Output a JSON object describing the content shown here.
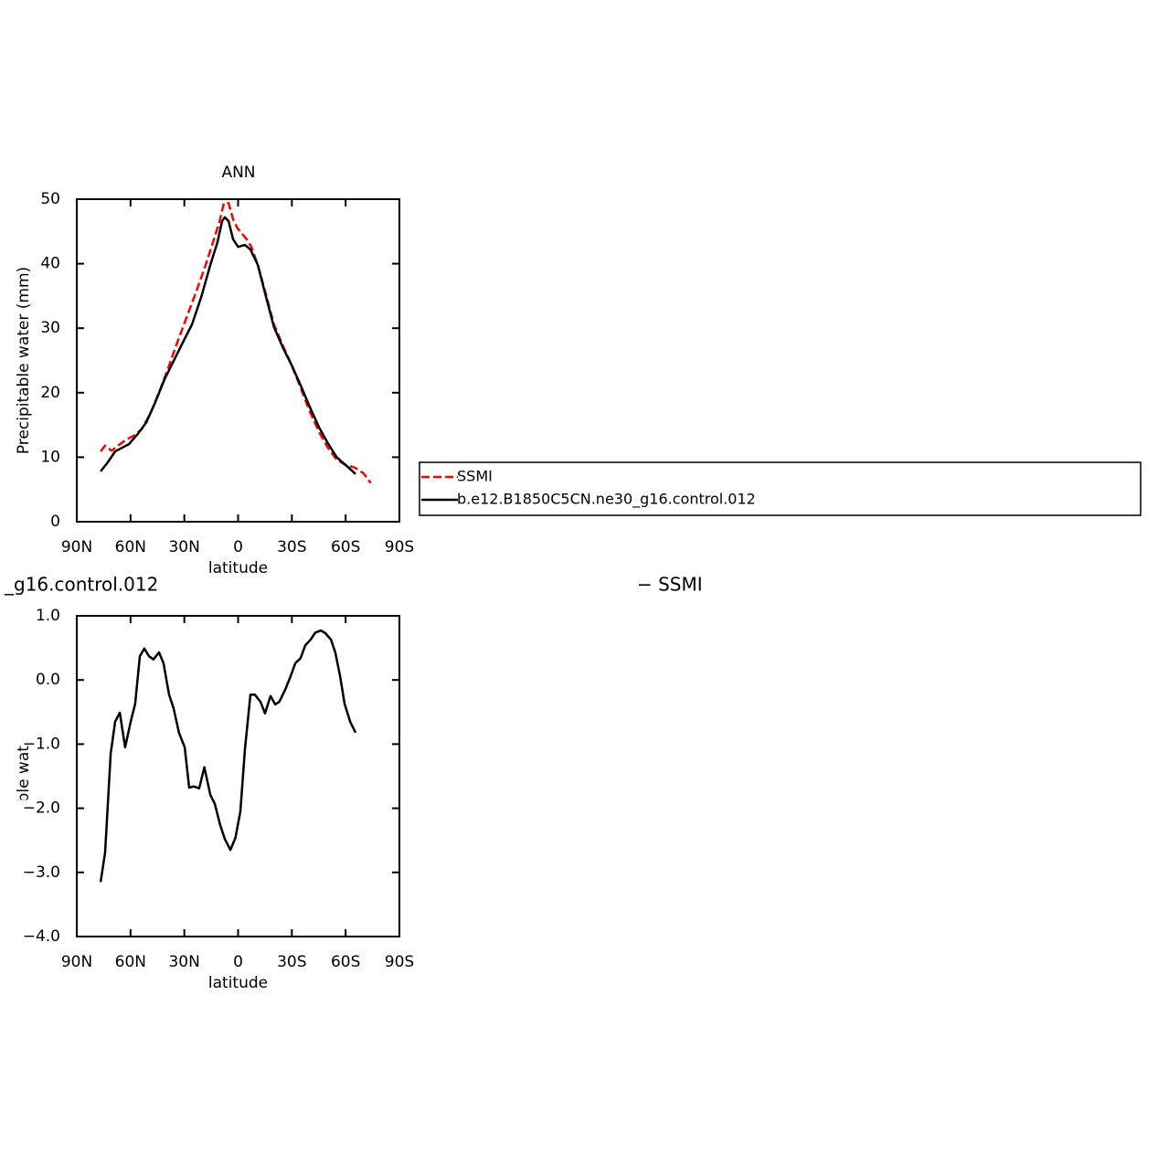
{
  "chart_data": [
    {
      "type": "line",
      "title": "ANN",
      "xlabel": "latitude",
      "ylabel": "Precipitable water (mm)",
      "xlim": [
        90,
        -90
      ],
      "xticks": [
        {
          "value": 90,
          "label": "90N"
        },
        {
          "value": 60,
          "label": "60N"
        },
        {
          "value": 30,
          "label": "30N"
        },
        0,
        {
          "value": -30,
          "label": "30S"
        },
        {
          "value": -60,
          "label": "60S"
        },
        {
          "value": -90,
          "label": "90S"
        }
      ],
      "ylim": [
        0,
        50
      ],
      "yticks": [
        0,
        10,
        20,
        30,
        40,
        50
      ],
      "legend": "right",
      "series": [
        {
          "name": "SSMI",
          "color": "#ff0000",
          "dash": "dashed",
          "x": [
            76.7,
            74.2,
            70.6,
            66.5,
            62.5,
            58.4,
            53.8,
            48.7,
            43.6,
            38.5,
            33.4,
            28.3,
            23.2,
            18.1,
            14,
            10.4,
            7.9,
            5.3,
            2.8,
            0.3,
            -2.3,
            -4.8,
            -7.4,
            -11,
            -15,
            -20,
            -25,
            -30,
            -35,
            -40,
            -45,
            -50,
            -55,
            -60,
            -65,
            -70,
            -74
          ],
          "values": [
            10.9,
            11.8,
            11.0,
            11.9,
            12.7,
            13.3,
            14.3,
            16.9,
            20.4,
            24.2,
            28.2,
            32.0,
            35.8,
            39.8,
            43.3,
            46.5,
            49.4,
            49.4,
            46.9,
            45.5,
            44.6,
            43.8,
            42.6,
            39.8,
            35.8,
            30.6,
            27.3,
            24.2,
            20.7,
            17.1,
            14.0,
            11.5,
            9.6,
            8.8,
            8.4,
            7.5,
            6.0
          ]
        },
        {
          "name": "b.e12.B1850C5CN.ne30_g16.control.012",
          "color": "#000000",
          "dash": "solid",
          "x": [
            76.7,
            72.7,
            68.6,
            64.5,
            61,
            56.3,
            51.2,
            46.1,
            41,
            36,
            30.8,
            25.7,
            20.6,
            15.5,
            11.5,
            8.9,
            7.4,
            5.3,
            2.8,
            0,
            -3.8,
            -6.9,
            -11,
            -15,
            -20,
            -25,
            -30,
            -35,
            -40,
            -45,
            -50,
            -55,
            -60,
            -65.5
          ],
          "values": [
            7.8,
            9.2,
            10.9,
            11.5,
            12.0,
            13.5,
            15.4,
            18.6,
            22.1,
            24.9,
            27.8,
            30.6,
            34.8,
            39.8,
            43.3,
            46.6,
            47.2,
            46.6,
            43.8,
            42.6,
            42.9,
            42.2,
            39.8,
            35.5,
            30.2,
            27.0,
            24.2,
            21.1,
            17.8,
            14.7,
            12.2,
            10.0,
            8.8,
            7.4
          ]
        }
      ]
    },
    {
      "type": "line",
      "title": "_g16.control.012",
      "subtitle": "− SSMI",
      "xlabel": "latitude",
      "ylabel": "Precipitable water (mm)",
      "xlim": [
        90,
        -90
      ],
      "xticks": [
        {
          "value": 90,
          "label": "90N"
        },
        {
          "value": 60,
          "label": "60N"
        },
        {
          "value": 30,
          "label": "30N"
        },
        0,
        {
          "value": -30,
          "label": "30S"
        },
        {
          "value": -60,
          "label": "60S"
        },
        {
          "value": -90,
          "label": "90S"
        }
      ],
      "ylim": [
        -4,
        1
      ],
      "yticks": [
        {
          "value": -4,
          "label": "−4.0"
        },
        {
          "value": -3,
          "label": "−3.0"
        },
        {
          "value": -2,
          "label": "−2.0"
        },
        {
          "value": -1,
          "label": "−1.0"
        },
        {
          "value": 0,
          "label": "0.0"
        },
        {
          "value": 1,
          "label": "1.0"
        }
      ],
      "series": [
        {
          "color": "#000000",
          "dash": "solid",
          "x": [
            76.7,
            74.2,
            71.1,
            68.6,
            66,
            63,
            59.9,
            57.4,
            54.8,
            52.3,
            49.7,
            47.2,
            44.1,
            41.6,
            38.5,
            36,
            33,
            29.8,
            27.3,
            24.7,
            21.7,
            18.8,
            15.5,
            13,
            10,
            7.4,
            4.3,
            1.5,
            -1.3,
            -3.8,
            -6.9,
            -9.4,
            -12.5,
            -15,
            -18.1,
            -20.7,
            -23,
            -26.3,
            -29.3,
            -31.9,
            -34.9,
            -37.5,
            -40.5,
            -43.1,
            -46.2,
            -48.7,
            -51.8,
            -54.3,
            -56.9,
            -59.4,
            -62.5,
            -65.5
          ],
          "values": [
            -3.15,
            -2.69,
            -1.15,
            -0.65,
            -0.51,
            -1.05,
            -0.65,
            -0.37,
            0.37,
            0.49,
            0.37,
            0.32,
            0.43,
            0.26,
            -0.23,
            -0.44,
            -0.82,
            -1.05,
            -1.68,
            -1.66,
            -1.69,
            -1.36,
            -1.79,
            -1.93,
            -2.26,
            -2.48,
            -2.65,
            -2.46,
            -2.05,
            -1.08,
            -0.23,
            -0.23,
            -0.34,
            -0.52,
            -0.25,
            -0.38,
            -0.34,
            -0.15,
            0.06,
            0.26,
            0.34,
            0.54,
            0.63,
            0.74,
            0.77,
            0.73,
            0.63,
            0.42,
            0.06,
            -0.37,
            -0.65,
            -0.82
          ]
        }
      ]
    }
  ]
}
